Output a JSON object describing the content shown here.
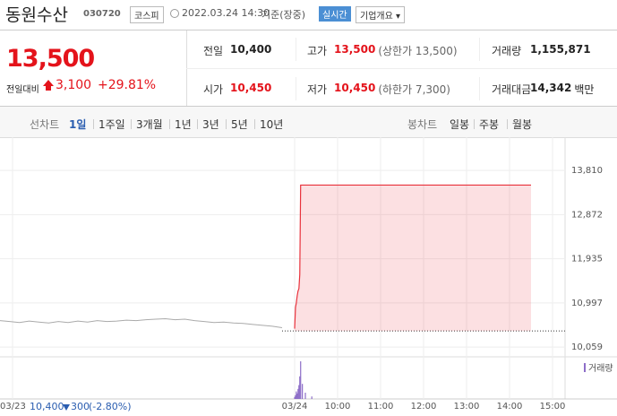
{
  "header": {
    "name": "동원수산",
    "code": "030720",
    "market": "코스피",
    "time": "2022.03.24 14:30",
    "basis": "기준(장중)",
    "realtime": "실시간",
    "overview": "기업개요"
  },
  "quote": {
    "price": "13,500",
    "change_label": "전일대비",
    "change": "3,100",
    "rate": "+29.81%"
  },
  "stats": [
    [
      {
        "label": "전일",
        "value": "10,400"
      },
      {
        "label": "고가",
        "value": "13,500",
        "note": "(상한가 13,500)",
        "color": "#e4131b"
      },
      {
        "label": "거래량",
        "value": "1,155,871"
      }
    ],
    [
      {
        "label": "시가",
        "value": "10,450",
        "color": "#e4131b"
      },
      {
        "label": "저가",
        "value": "10,450",
        "note": "(하한가 7,300)",
        "color": "#e4131b"
      },
      {
        "label": "거래대금",
        "value": "14,342",
        "note": "백만"
      }
    ]
  ],
  "tabs": {
    "line_label": "선차트",
    "line_periods": [
      "1일",
      "1주일",
      "3개월",
      "1년",
      "3년",
      "5년",
      "10년"
    ],
    "candle_label": "봉차트",
    "candle_periods": [
      "일봉",
      "주봉",
      "월봉"
    ]
  },
  "chart": {
    "type": "line",
    "ylim": [
      9870,
      14480
    ],
    "yticks": [
      {
        "value": 13810,
        "label": "13,810"
      },
      {
        "value": 12872,
        "label": "12,872"
      },
      {
        "value": 11935,
        "label": "11,935"
      },
      {
        "value": 10997,
        "label": "10,997"
      },
      {
        "value": 10059,
        "label": "10,059"
      }
    ],
    "xlim": [
      9,
      15.25
    ],
    "xticks": [
      {
        "value": 9,
        "label": "03/24"
      },
      {
        "value": 10,
        "label": "10:00"
      },
      {
        "value": 11,
        "label": "11:00"
      },
      {
        "value": 12,
        "label": "12:00"
      },
      {
        "value": 13,
        "label": "13:00"
      },
      {
        "value": 14,
        "label": "14:00"
      },
      {
        "value": 15,
        "label": "15:00"
      }
    ],
    "previous_day": {
      "label": "03/23",
      "color": "#aaaaaa",
      "values": [
        10620,
        10600,
        10580,
        10610,
        10590,
        10570,
        10600,
        10580,
        10610,
        10590,
        10620,
        10600,
        10610,
        10630,
        10620,
        10640,
        10650,
        10660,
        10640,
        10650,
        10620,
        10600,
        10580,
        10590,
        10570,
        10560,
        10540,
        10520,
        10500,
        10470
      ]
    },
    "previous_close": 10400,
    "today": {
      "color": "#e8323c",
      "x": [
        9.0,
        9.02,
        9.04,
        9.06,
        9.08,
        9.1,
        9.12,
        9.14,
        14.5
      ],
      "values": [
        10450,
        10900,
        11000,
        11150,
        11250,
        11300,
        11600,
        13500,
        13500
      ]
    },
    "volume": {
      "name": "거래량",
      "color": "#8d6ec8",
      "x": [
        9.0,
        9.02,
        9.04,
        9.06,
        9.08,
        9.1,
        9.12,
        9.14,
        9.18,
        9.25,
        9.4
      ],
      "values": [
        8000,
        15000,
        30000,
        22000,
        40000,
        55000,
        90000,
        150000,
        60000,
        25000,
        10000
      ]
    }
  },
  "footer": {
    "close": "10,400",
    "change": "300",
    "rate": "(-2.80%)"
  }
}
